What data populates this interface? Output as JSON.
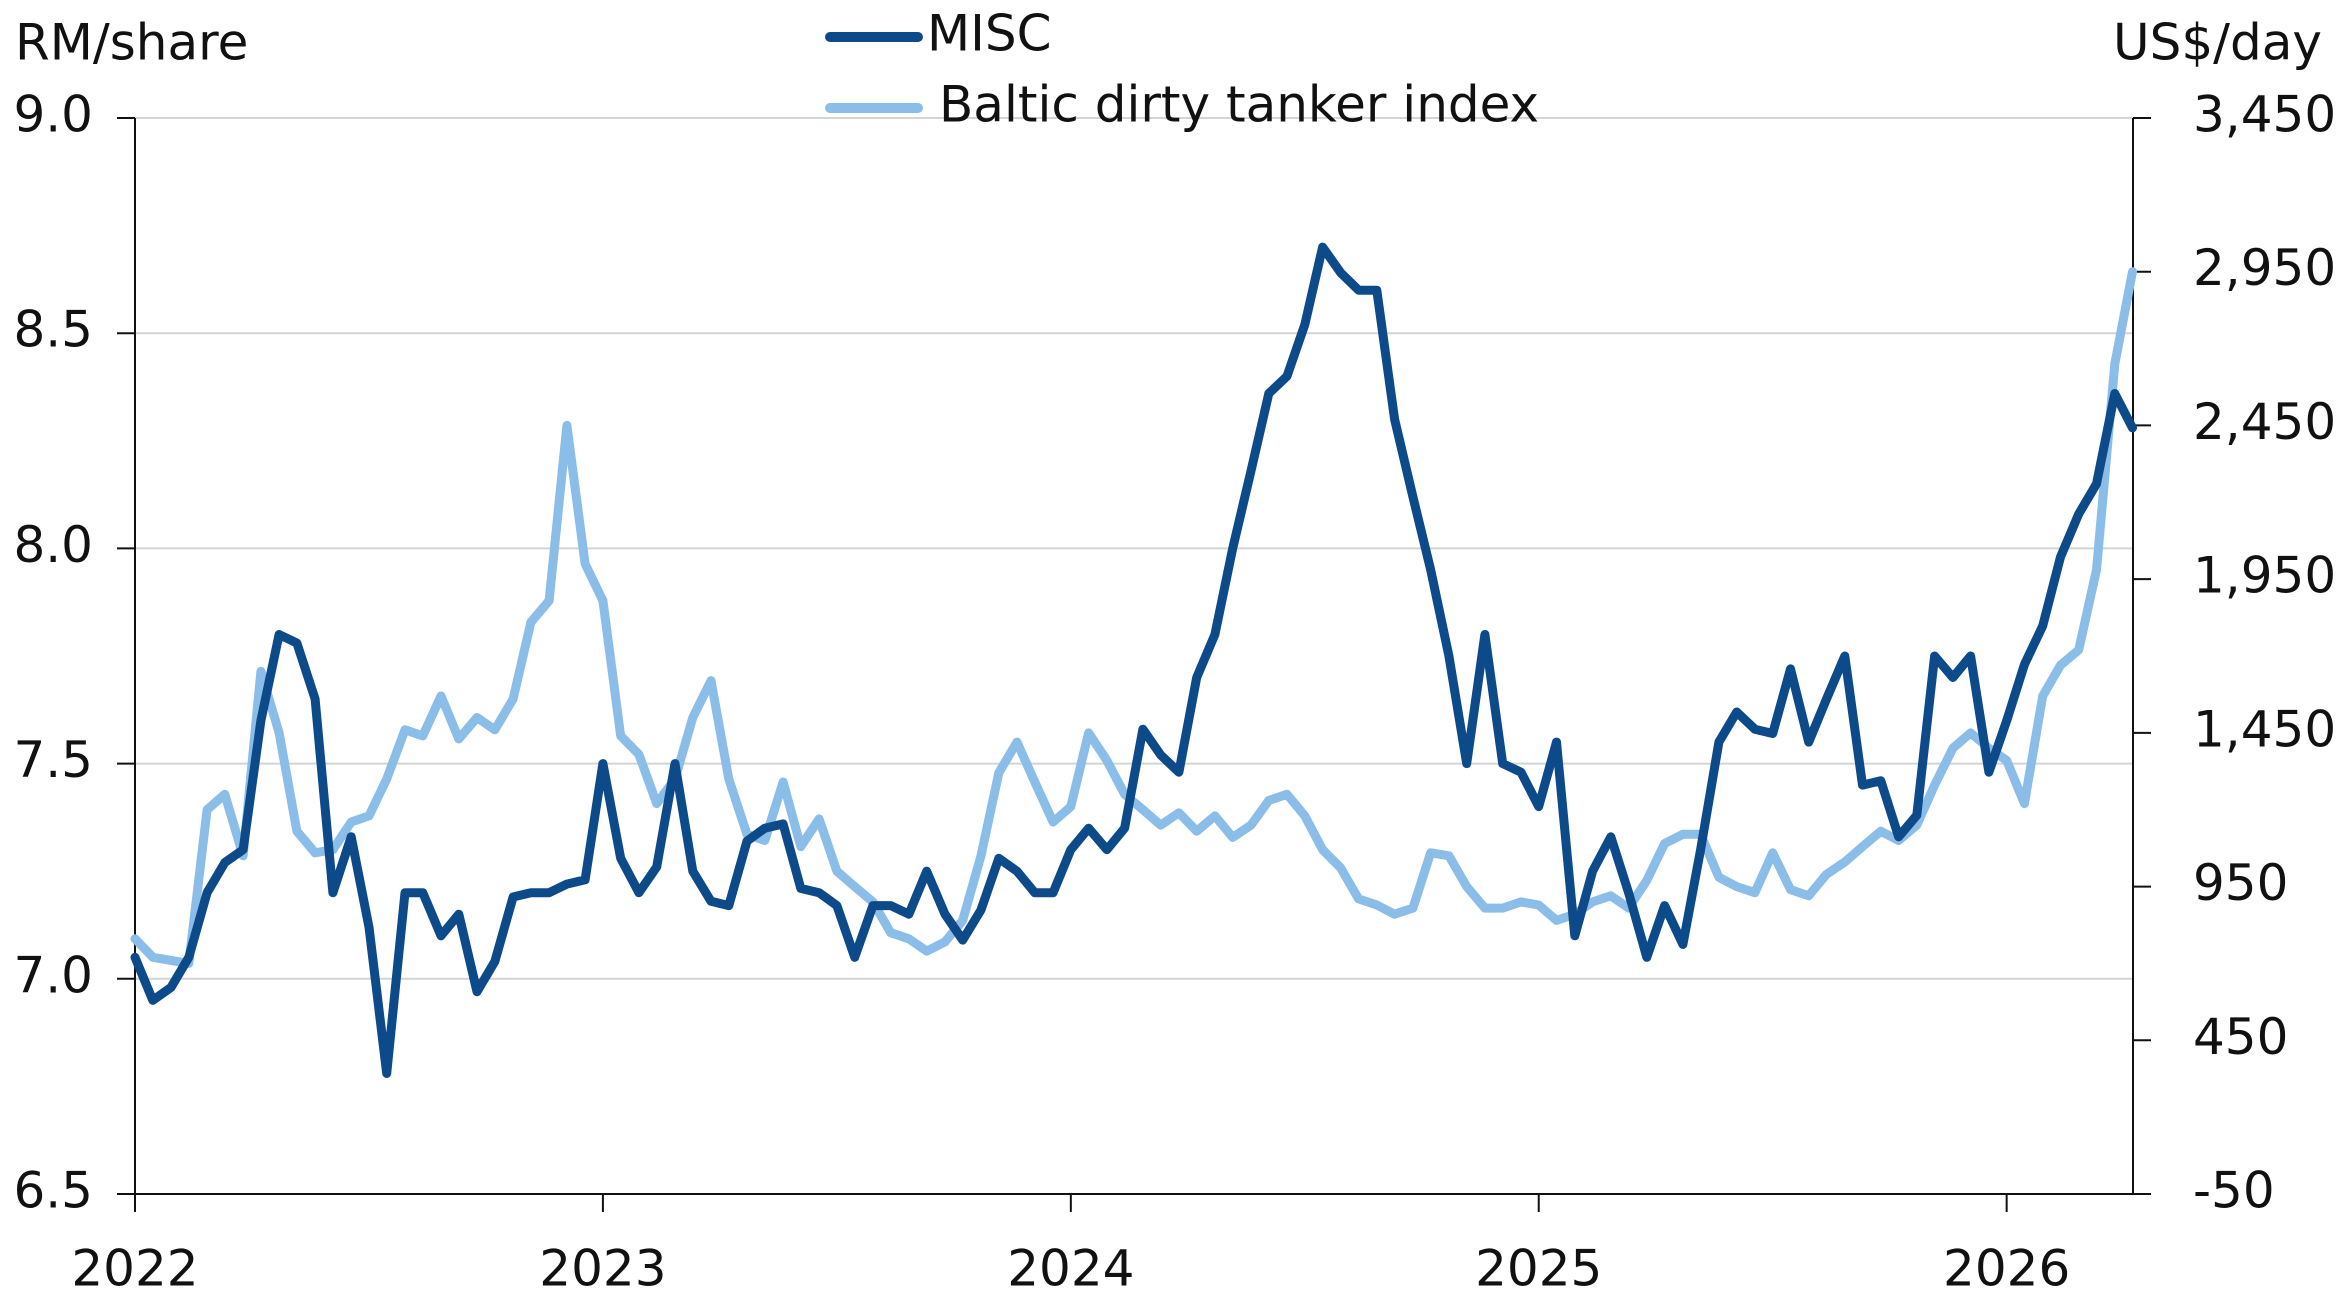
{
  "chart_data": {
    "type": "line",
    "y_label": "RM/share",
    "y2_label": "US$/day",
    "x": [
      2022.0,
      2022.038,
      2022.077,
      2022.115,
      2022.154,
      2022.192,
      2022.231,
      2022.269,
      2022.308,
      2022.346,
      2022.385,
      2022.423,
      2022.462,
      2022.5,
      2022.538,
      2022.577,
      2022.615,
      2022.654,
      2022.692,
      2022.731,
      2022.769,
      2022.808,
      2022.846,
      2022.885,
      2022.923,
      2022.962,
      2023.0,
      2023.038,
      2023.077,
      2023.115,
      2023.154,
      2023.192,
      2023.231,
      2023.269,
      2023.308,
      2023.346,
      2023.385,
      2023.423,
      2023.462,
      2023.5,
      2023.538,
      2023.577,
      2023.615,
      2023.654,
      2023.692,
      2023.731,
      2023.769,
      2023.808,
      2023.846,
      2023.885,
      2023.923,
      2023.962,
      2024.0,
      2024.038,
      2024.077,
      2024.115,
      2024.154,
      2024.192,
      2024.231,
      2024.269,
      2024.308,
      2024.346,
      2024.385,
      2024.423,
      2024.462,
      2024.5,
      2024.538,
      2024.577,
      2024.615,
      2024.654,
      2024.692,
      2024.731,
      2024.769,
      2024.808,
      2024.846,
      2024.885,
      2024.923,
      2024.962,
      2025.0,
      2025.038,
      2025.077,
      2025.115,
      2025.154,
      2025.192,
      2025.231,
      2025.269,
      2025.308,
      2025.346,
      2025.385,
      2025.423,
      2025.462,
      2025.5,
      2025.538,
      2025.577,
      2025.615,
      2025.654,
      2025.692,
      2025.731,
      2025.769,
      2025.808,
      2025.846,
      2025.885,
      2025.923,
      2025.962,
      2026.0,
      2026.038,
      2026.077,
      2026.115,
      2026.154,
      2026.192,
      2026.231,
      2026.269
    ],
    "series": [
      {
        "name": "MISC",
        "color": "#0d4a8a",
        "axis": "y",
        "values": [
          7.05,
          6.95,
          6.98,
          7.05,
          7.2,
          7.27,
          7.3,
          7.6,
          7.8,
          7.78,
          7.65,
          7.2,
          7.33,
          7.12,
          6.78,
          7.2,
          7.2,
          7.1,
          7.15,
          6.97,
          7.04,
          7.19,
          7.2,
          7.2,
          7.22,
          7.23,
          7.5,
          7.28,
          7.2,
          7.26,
          7.5,
          7.25,
          7.18,
          7.17,
          7.32,
          7.35,
          7.36,
          7.21,
          7.2,
          7.17,
          7.05,
          7.17,
          7.17,
          7.15,
          7.25,
          7.15,
          7.09,
          7.16,
          7.28,
          7.25,
          7.2,
          7.2,
          7.3,
          7.35,
          7.3,
          7.35,
          7.58,
          7.52,
          7.48,
          7.7,
          7.8,
          8.0,
          8.18,
          8.36,
          8.4,
          8.52,
          8.7,
          8.64,
          8.6,
          8.6,
          8.3,
          8.12,
          7.95,
          7.75,
          7.5,
          7.8,
          7.5,
          7.48,
          7.4,
          7.55,
          7.1,
          7.25,
          7.33,
          7.2,
          7.05,
          7.17,
          7.08,
          7.3,
          7.55,
          7.62,
          7.58,
          7.57,
          7.72,
          7.55,
          7.65,
          7.75,
          7.45,
          7.46,
          7.33,
          7.38,
          7.75,
          7.7,
          7.75,
          7.48,
          7.6,
          7.73,
          7.82,
          7.98,
          8.08,
          8.15,
          8.36,
          8.28
        ]
      },
      {
        "name": "Baltic dirty tanker index",
        "color": "#8bbde9",
        "axis": "y2",
        "values": [
          780,
          720,
          710,
          700,
          1200,
          1250,
          1050,
          1650,
          1450,
          1130,
          1060,
          1070,
          1160,
          1180,
          1300,
          1460,
          1440,
          1570,
          1430,
          1500,
          1460,
          1560,
          1810,
          1880,
          2450,
          2000,
          1880,
          1440,
          1380,
          1220,
          1300,
          1500,
          1620,
          1300,
          1120,
          1100,
          1290,
          1080,
          1170,
          1000,
          950,
          900,
          800,
          780,
          740,
          770,
          840,
          1050,
          1320,
          1420,
          1290,
          1160,
          1210,
          1450,
          1360,
          1250,
          1200,
          1150,
          1190,
          1130,
          1180,
          1110,
          1150,
          1230,
          1250,
          1180,
          1070,
          1010,
          910,
          890,
          860,
          880,
          1060,
          1050,
          950,
          880,
          880,
          900,
          890,
          840,
          860,
          900,
          920,
          880,
          970,
          1090,
          1120,
          1120,
          980,
          950,
          930,
          1060,
          940,
          920,
          990,
          1030,
          1080,
          1130,
          1100,
          1150,
          1280,
          1400,
          1450,
          1400,
          1360,
          1220,
          1570,
          1670,
          1720,
          1980,
          2650,
          2950
        ]
      }
    ],
    "xlim": [
      2022,
      2026.27
    ],
    "xticks": [
      2022,
      2023,
      2024,
      2025,
      2026
    ],
    "ylim": [
      6.5,
      9.0
    ],
    "yticks": [
      6.5,
      {
        "value": 7.0,
        "label": "7.0"
      },
      7.5,
      {
        "value": 8.0,
        "label": "8.0"
      },
      8.5,
      {
        "value": 9.0,
        "label": "9.0"
      }
    ],
    "y2lim": [
      -50,
      3450
    ],
    "y2ticks": [
      -50,
      450,
      950,
      {
        "value": 1450,
        "label": "1,450"
      },
      {
        "value": 1950,
        "label": "1,950"
      },
      {
        "value": 2450,
        "label": "2,450"
      },
      {
        "value": 2950,
        "label": "2,950"
      },
      {
        "value": 3450,
        "label": "3,450"
      }
    ],
    "grid": true,
    "legend": "top"
  }
}
